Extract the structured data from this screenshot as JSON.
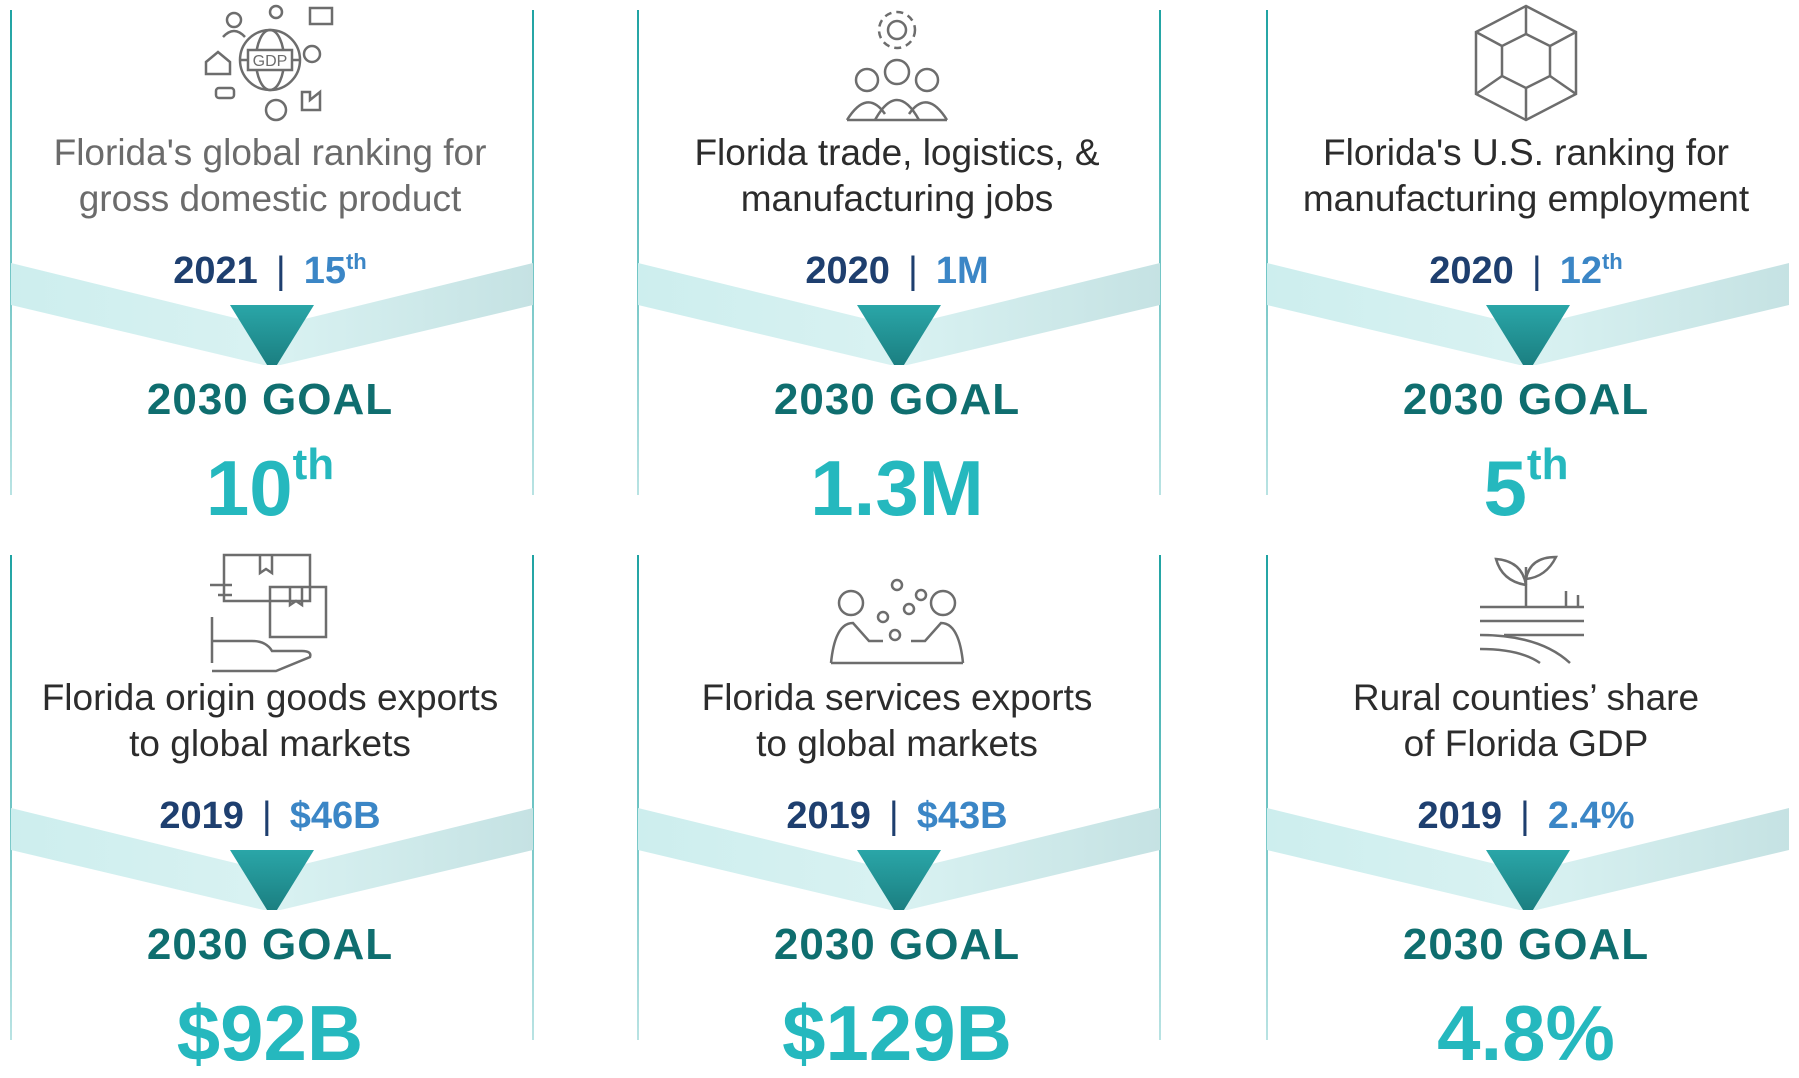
{
  "cards": [
    {
      "description_line1": "Florida's global ranking for",
      "description_line2": "gross domestic product",
      "base_year": "2021",
      "base_value": "15",
      "base_suffix": "th",
      "goal_label": "2030 GOAL",
      "goal_value": "10",
      "goal_suffix": "th",
      "icon": "gdp-globe-icon",
      "icon_text": "GDP"
    },
    {
      "description_line1": "Florida trade, logistics, &",
      "description_line2": "manufacturing jobs",
      "base_year": "2020",
      "base_value": "1M",
      "base_suffix": "",
      "goal_label": "2030 GOAL",
      "goal_value": "1.3M",
      "goal_suffix": "",
      "icon": "people-gear-icon"
    },
    {
      "description_line1": "Florida's U.S. ranking for",
      "description_line2": "manufacturing employment",
      "base_year": "2020",
      "base_value": "12",
      "base_suffix": "th",
      "goal_label": "2030 GOAL",
      "goal_value": "5",
      "goal_suffix": "th",
      "icon": "cube-icon"
    },
    {
      "description_line1": "Florida origin goods exports",
      "description_line2": "to global markets",
      "base_year": "2019",
      "base_value": "$46B",
      "base_suffix": "",
      "goal_label": "2030 GOAL",
      "goal_value": "$92B",
      "goal_suffix": "",
      "icon": "hand-boxes-icon"
    },
    {
      "description_line1": "Florida services exports",
      "description_line2": "to global markets",
      "base_year": "2019",
      "base_value": "$43B",
      "base_suffix": "",
      "goal_label": "2030 GOAL",
      "goal_value": "$129B",
      "goal_suffix": "",
      "icon": "people-exchange-icon"
    },
    {
      "description_line1": "Rural counties’ share",
      "description_line2": "of Florida GDP",
      "base_year": "2019",
      "base_value": "2.4%",
      "base_suffix": "",
      "goal_label": "2030 GOAL",
      "goal_value": "4.8%",
      "goal_suffix": "",
      "icon": "sprout-field-icon"
    }
  ],
  "colors": {
    "dark_teal": "#0f6e6f",
    "bright_teal": "#25b8be",
    "navy": "#1e3f6f",
    "blue": "#3b86c6",
    "band": "#c8ebec"
  }
}
